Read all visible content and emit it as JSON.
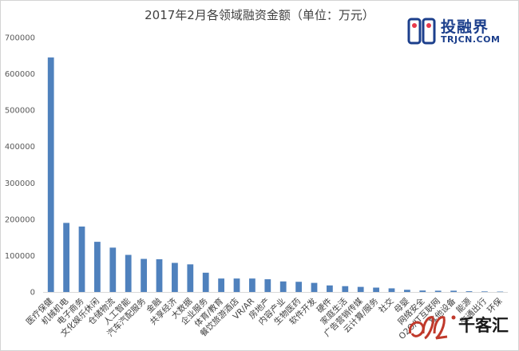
{
  "brand": {
    "name": "投融界",
    "domain": "TRJCN.COM",
    "color": "#1c3f8c",
    "accent": "#e8394a"
  },
  "watermark": {
    "text": "千客汇",
    "accent": "#c0392b"
  },
  "chart_data": {
    "type": "bar",
    "title": "2017年2月各领域融资金额（单位：万元）",
    "xlabel": "",
    "ylabel": "",
    "ylim": [
      0,
      700000
    ],
    "yticks": [
      0,
      100000,
      200000,
      300000,
      400000,
      500000,
      600000,
      700000
    ],
    "grid": false,
    "legend": "none",
    "bar_color": "#4f81bd",
    "categories": [
      "医疗保健",
      "机械机电",
      "电子商务",
      "文化娱乐休闲",
      "仓储物流",
      "人工智能",
      "汽车汽配服务",
      "金融",
      "共享经济",
      "大数据",
      "企业服务",
      "体育/教育",
      "餐饮旅游酒店",
      "VR/AR",
      "房地产",
      "内容产业",
      "生物医药",
      "软件开发",
      "硬件",
      "家庭生活",
      "广告营销传媒",
      "云计算/服务",
      "社交",
      "母婴",
      "网络安全",
      "O2O/IT互联网",
      "其他设备",
      "能源",
      "交通出行",
      "环保"
    ],
    "values": [
      645000,
      190000,
      180000,
      138000,
      122000,
      102000,
      91000,
      90000,
      80000,
      76000,
      53000,
      37000,
      37000,
      37000,
      35000,
      29000,
      28000,
      25000,
      18000,
      16000,
      14000,
      12000,
      10000,
      6000,
      4000,
      3500,
      3500,
      2000,
      1500,
      1000
    ]
  }
}
